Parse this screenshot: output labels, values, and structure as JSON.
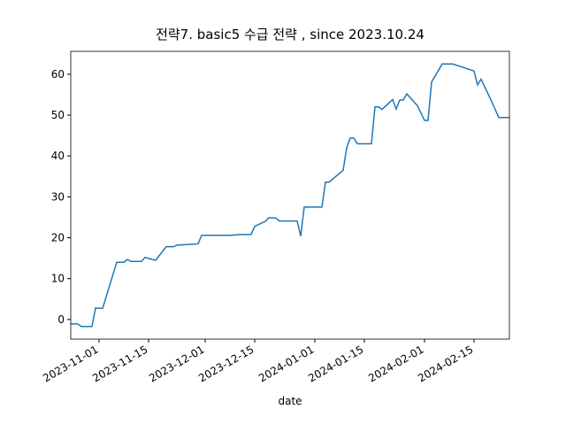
{
  "chart_data": {
    "type": "line",
    "title": "전략7. basic5 수급 전략 , since 2023.10.24",
    "xlabel": "date",
    "x": [
      "2023-10-24",
      "2023-10-26",
      "2023-10-27",
      "2023-10-30",
      "2023-10-31",
      "2023-11-02",
      "2023-11-06",
      "2023-11-08",
      "2023-11-09",
      "2023-11-10",
      "2023-11-13",
      "2023-11-14",
      "2023-11-16",
      "2023-11-17",
      "2023-11-20",
      "2023-11-22",
      "2023-11-23",
      "2023-11-27",
      "2023-11-29",
      "2023-11-30",
      "2023-12-08",
      "2023-12-11",
      "2023-12-14",
      "2023-12-15",
      "2023-12-18",
      "2023-12-19",
      "2023-12-21",
      "2023-12-22",
      "2023-12-27",
      "2023-12-28",
      "2023-12-29",
      "2024-01-03",
      "2024-01-04",
      "2024-01-05",
      "2024-01-09",
      "2024-01-10",
      "2024-01-11",
      "2024-01-12",
      "2024-01-13",
      "2024-01-17",
      "2024-01-18",
      "2024-01-19",
      "2024-01-20",
      "2024-01-23",
      "2024-01-24",
      "2024-01-25",
      "2024-01-26",
      "2024-01-27",
      "2024-01-30",
      "2024-02-01",
      "2024-02-02",
      "2024-02-03",
      "2024-02-06",
      "2024-02-09",
      "2024-02-15",
      "2024-02-16",
      "2024-02-17",
      "2024-02-20",
      "2024-02-22",
      "2024-02-25"
    ],
    "series": [
      {
        "color": "#1f77b4",
        "values": [
          -1.1,
          -1.1,
          -1.7,
          -1.7,
          2.8,
          2.7,
          14.0,
          14.0,
          14.7,
          14.2,
          14.2,
          15.2,
          14.7,
          14.5,
          17.8,
          17.8,
          18.2,
          18.4,
          18.5,
          20.6,
          20.6,
          20.8,
          20.8,
          22.8,
          24.0,
          24.9,
          24.8,
          24.1,
          24.1,
          20.4,
          27.5,
          27.5,
          33.6,
          33.6,
          36.5,
          42.0,
          44.4,
          44.4,
          43.0,
          43.0,
          52.0,
          52.0,
          51.4,
          53.8,
          51.5,
          53.7,
          53.7,
          55.2,
          52.3,
          48.7,
          48.7,
          58.1,
          62.5,
          62.5,
          60.8,
          57.4,
          58.8,
          53.3,
          49.4,
          49.4
        ]
      }
    ],
    "xlim": [
      "2023-10-24",
      "2024-02-25"
    ],
    "xticks": [
      "2023-11-01",
      "2023-11-15",
      "2023-12-01",
      "2023-12-15",
      "2024-01-01",
      "2024-01-15",
      "2024-02-01",
      "2024-02-15"
    ],
    "ylim": [
      -4.8,
      65.6
    ],
    "yticks": [
      0,
      10,
      20,
      30,
      40,
      50,
      60
    ]
  }
}
